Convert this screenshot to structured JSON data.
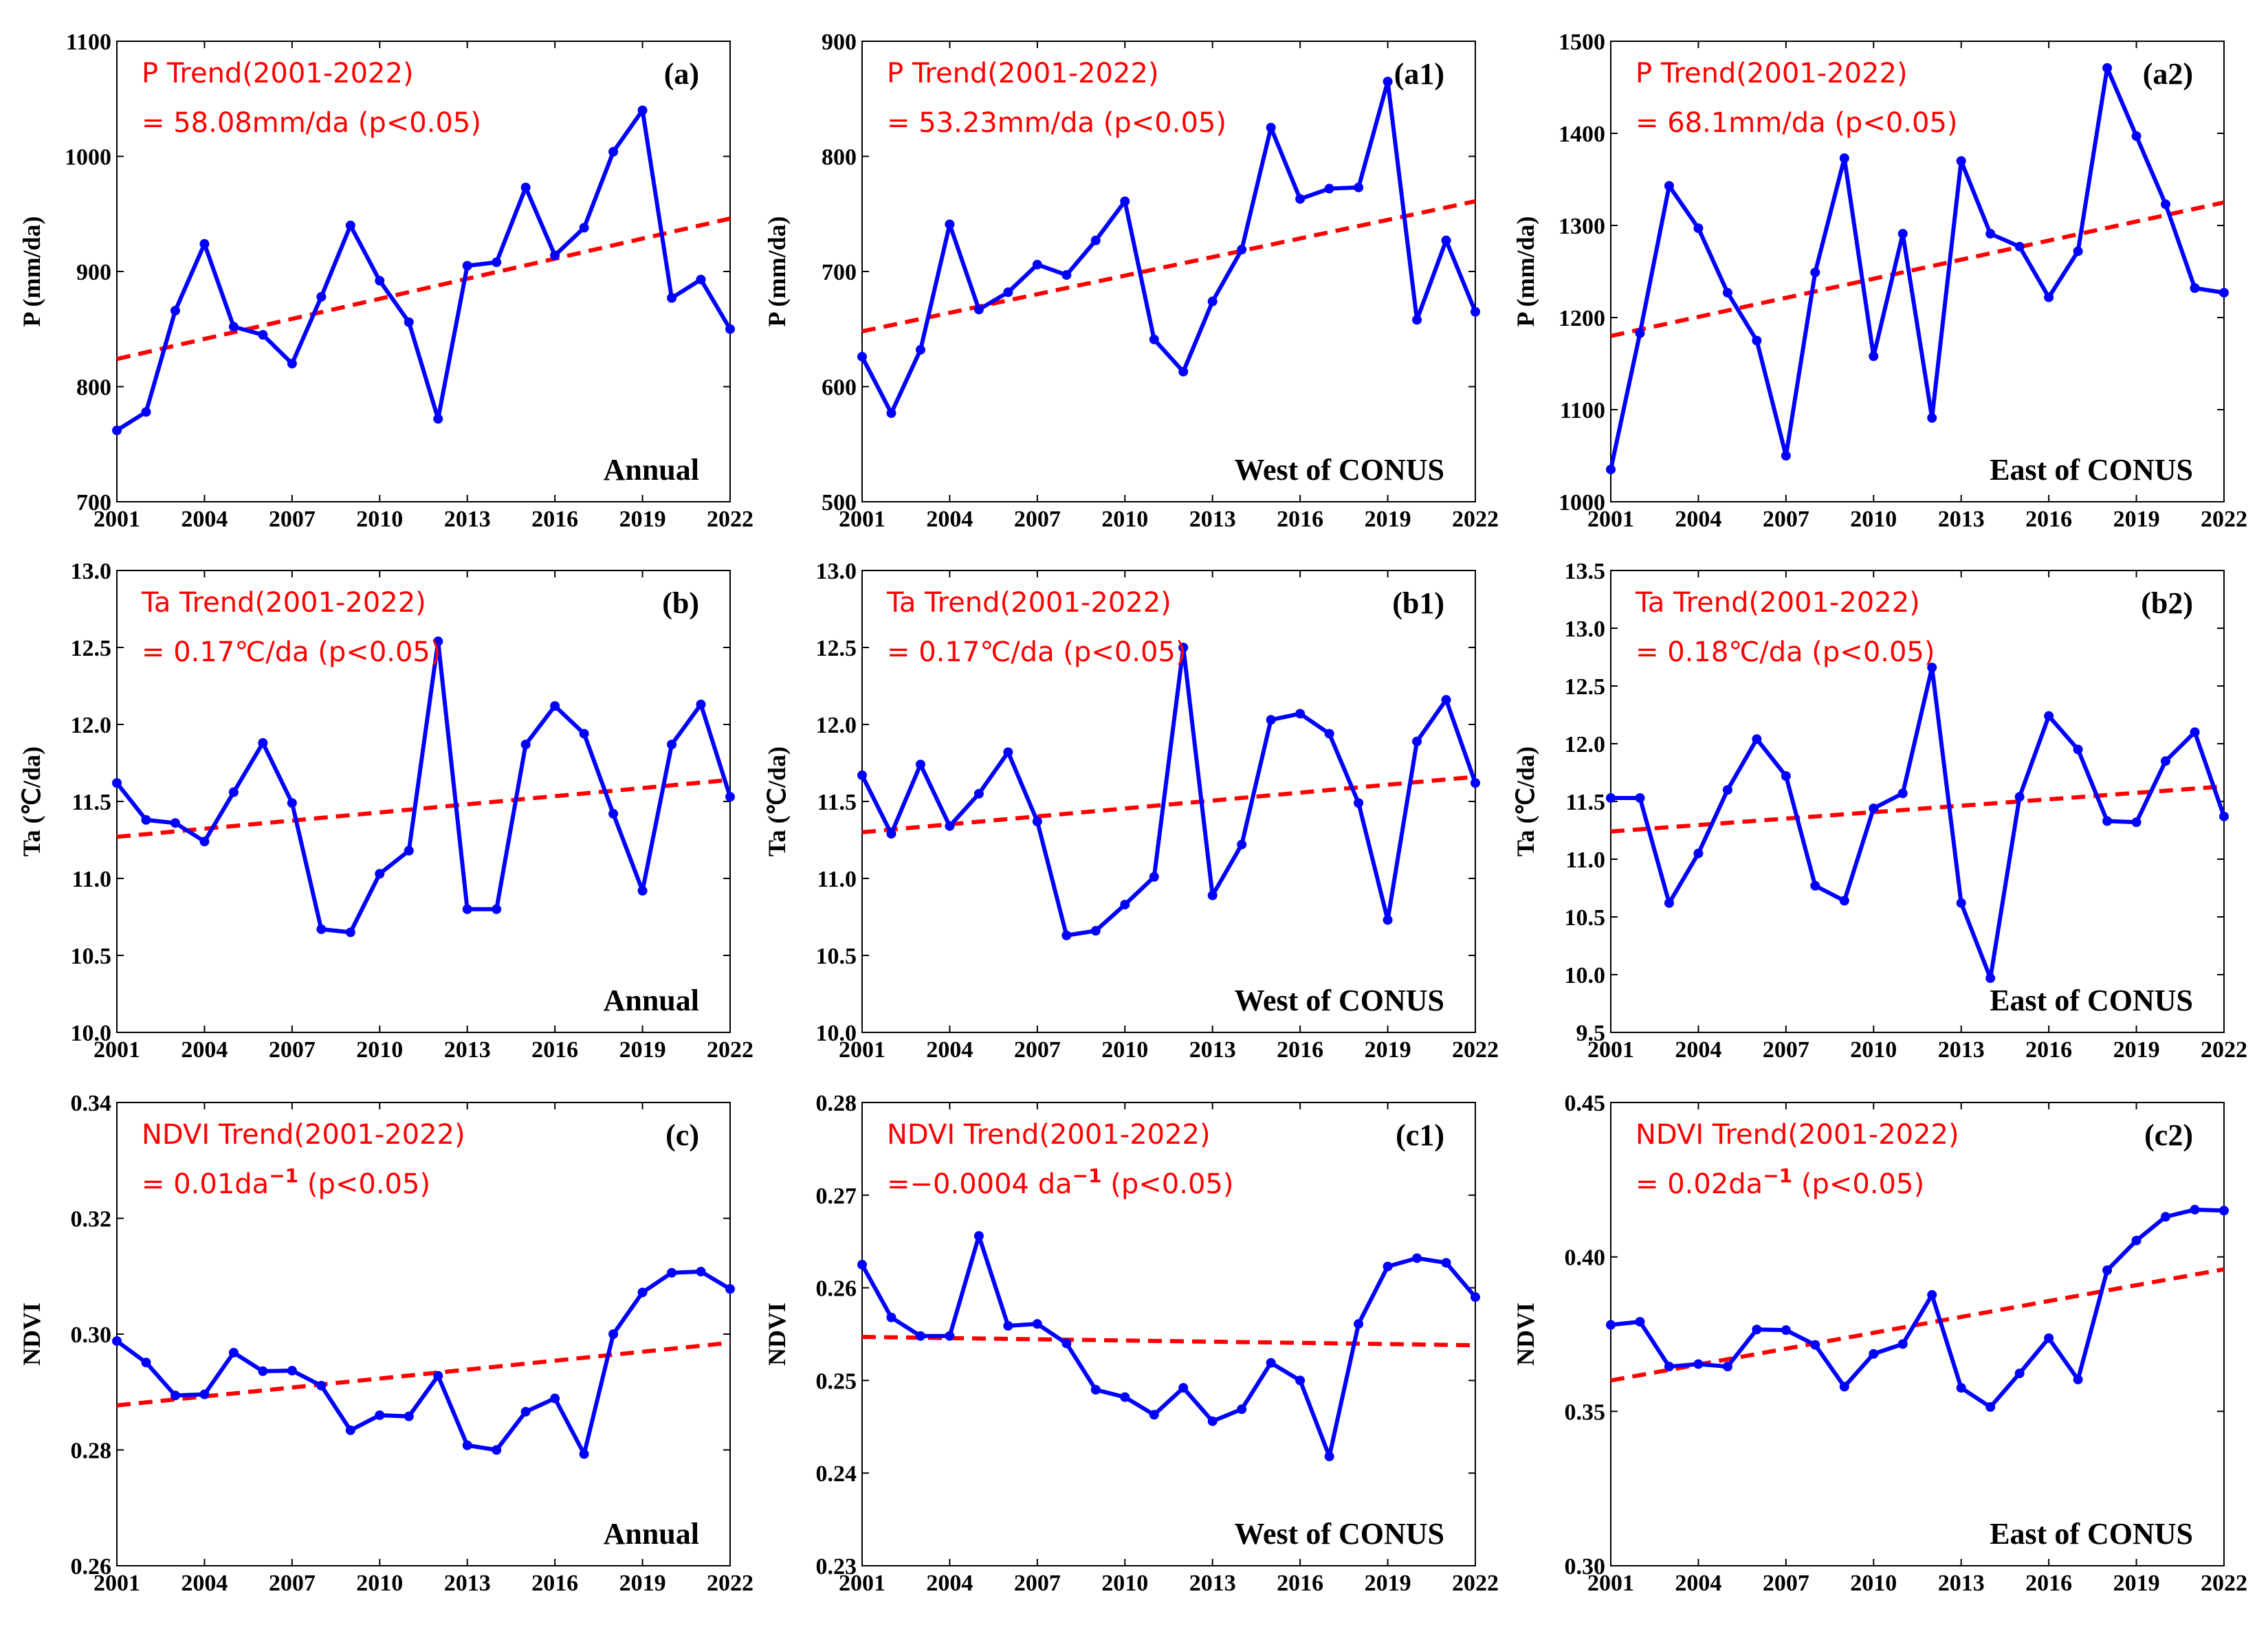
{
  "chart_data": [
    {
      "id": "a",
      "type": "line",
      "panel_label": "(a)",
      "region_label": "Annual",
      "ylabel": "P (mm/da)",
      "ylim": [
        700,
        1100
      ],
      "yticks": [
        700,
        800,
        900,
        1000,
        1100
      ],
      "ytick_labels": [
        "700",
        "800",
        "900",
        "1000",
        "1100"
      ],
      "xticks": [
        2001,
        2004,
        2007,
        2010,
        2013,
        2016,
        2019,
        2022
      ],
      "xtick_labels": [
        "2001",
        "2004",
        "2007",
        "2010",
        "2013",
        "2016",
        "2019",
        "2022"
      ],
      "x": [
        2001,
        2002,
        2003,
        2004,
        2005,
        2006,
        2007,
        2008,
        2009,
        2010,
        2011,
        2012,
        2013,
        2014,
        2015,
        2016,
        2017,
        2018,
        2019,
        2020,
        2021,
        2022
      ],
      "values": [
        762,
        778,
        866,
        924,
        852,
        845,
        820,
        878,
        940,
        892,
        856,
        772,
        905,
        908,
        973,
        914,
        938,
        1004,
        1040,
        877,
        893,
        850
      ],
      "trend": {
        "x": [
          2001,
          2022
        ],
        "y": [
          824,
          946
        ]
      },
      "trend_line1": "P Trend(2001-2022)",
      "trend_line2": "= 58.08mm/da (p<0.05)"
    },
    {
      "id": "a1",
      "type": "line",
      "panel_label": "(a1)",
      "region_label": "West of CONUS",
      "ylabel": "P (mm/da)",
      "ylim": [
        500,
        900
      ],
      "yticks": [
        500,
        600,
        700,
        800,
        900
      ],
      "ytick_labels": [
        "500",
        "600",
        "700",
        "800",
        "900"
      ],
      "xticks": [
        2001,
        2004,
        2007,
        2010,
        2013,
        2016,
        2019,
        2022
      ],
      "xtick_labels": [
        "2001",
        "2004",
        "2007",
        "2010",
        "2013",
        "2016",
        "2019",
        "2022"
      ],
      "x": [
        2001,
        2002,
        2003,
        2004,
        2005,
        2006,
        2007,
        2008,
        2009,
        2010,
        2011,
        2012,
        2013,
        2014,
        2015,
        2016,
        2017,
        2018,
        2019,
        2020,
        2021,
        2022
      ],
      "values": [
        626,
        577,
        632,
        741,
        667,
        682,
        706,
        697,
        727,
        761,
        641,
        613,
        674,
        719,
        825,
        763,
        772,
        773,
        865,
        658,
        727,
        665
      ],
      "trend": {
        "x": [
          2001,
          2022
        ],
        "y": [
          648,
          761
        ]
      },
      "trend_line1": "P Trend(2001-2022)",
      "trend_line2": "= 53.23mm/da (p<0.05)"
    },
    {
      "id": "a2",
      "type": "line",
      "panel_label": "(a2)",
      "region_label": "East of CONUS",
      "ylabel": "P (mm/da)",
      "ylim": [
        1000,
        1500
      ],
      "yticks": [
        1000,
        1100,
        1200,
        1300,
        1400,
        1500
      ],
      "ytick_labels": [
        "1000",
        "1100",
        "1200",
        "1300",
        "1400",
        "1500"
      ],
      "xticks": [
        2001,
        2004,
        2007,
        2010,
        2013,
        2016,
        2019,
        2022
      ],
      "xtick_labels": [
        "2001",
        "2004",
        "2007",
        "2010",
        "2013",
        "2016",
        "2019",
        "2022"
      ],
      "x": [
        2001,
        2002,
        2003,
        2004,
        2005,
        2006,
        2007,
        2008,
        2009,
        2010,
        2011,
        2012,
        2013,
        2014,
        2015,
        2016,
        2017,
        2018,
        2019,
        2020,
        2021,
        2022
      ],
      "values": [
        1035,
        1183,
        1343,
        1297,
        1227,
        1175,
        1050,
        1249,
        1373,
        1158,
        1291,
        1091,
        1370,
        1291,
        1277,
        1222,
        1272,
        1471,
        1397,
        1323,
        1232,
        1227
      ],
      "trend": {
        "x": [
          2001,
          2022
        ],
        "y": [
          1180,
          1325
        ]
      },
      "trend_line1": "P Trend(2001-2022)",
      "trend_line2": "= 68.1mm/da (p<0.05)"
    },
    {
      "id": "b",
      "type": "line",
      "panel_label": "(b)",
      "region_label": "Annual",
      "ylabel": "Ta (℃/da)",
      "ylim": [
        10.0,
        13.0
      ],
      "yticks": [
        10.0,
        10.5,
        11.0,
        11.5,
        12.0,
        12.5,
        13.0
      ],
      "ytick_labels": [
        "10.0",
        "10.5",
        "11.0",
        "11.5",
        "12.0",
        "12.5",
        "13.0"
      ],
      "xticks": [
        2001,
        2004,
        2007,
        2010,
        2013,
        2016,
        2019,
        2022
      ],
      "xtick_labels": [
        "2001",
        "2004",
        "2007",
        "2010",
        "2013",
        "2016",
        "2019",
        "2022"
      ],
      "x": [
        2001,
        2002,
        2003,
        2004,
        2005,
        2006,
        2007,
        2008,
        2009,
        2010,
        2011,
        2012,
        2013,
        2014,
        2015,
        2016,
        2017,
        2018,
        2019,
        2020,
        2021,
        2022
      ],
      "values": [
        11.62,
        11.38,
        11.36,
        11.24,
        11.56,
        11.88,
        11.49,
        10.67,
        10.65,
        11.03,
        11.18,
        12.54,
        10.8,
        10.8,
        11.87,
        12.12,
        11.94,
        11.42,
        10.92,
        11.87,
        12.13,
        11.53
      ],
      "trend": {
        "x": [
          2001,
          2022
        ],
        "y": [
          11.27,
          11.64
        ]
      },
      "trend_line1": "Ta Trend(2001-2022)",
      "trend_line2": "= 0.17℃/da (p<0.05)"
    },
    {
      "id": "b1",
      "type": "line",
      "panel_label": "(b1)",
      "region_label": "West of CONUS",
      "ylabel": "Ta (℃/da)",
      "ylim": [
        10.0,
        13.0
      ],
      "yticks": [
        10.0,
        10.5,
        11.0,
        11.5,
        12.0,
        12.5,
        13.0
      ],
      "ytick_labels": [
        "10.0",
        "10.5",
        "11.0",
        "11.5",
        "12.0",
        "12.5",
        "13.0"
      ],
      "xticks": [
        2001,
        2004,
        2007,
        2010,
        2013,
        2016,
        2019,
        2022
      ],
      "xtick_labels": [
        "2001",
        "2004",
        "2007",
        "2010",
        "2013",
        "2016",
        "2019",
        "2022"
      ],
      "x": [
        2001,
        2002,
        2003,
        2004,
        2005,
        2006,
        2007,
        2008,
        2009,
        2010,
        2011,
        2012,
        2013,
        2014,
        2015,
        2016,
        2017,
        2018,
        2019,
        2020,
        2021,
        2022
      ],
      "values": [
        11.67,
        11.29,
        11.74,
        11.34,
        11.55,
        11.82,
        11.37,
        10.63,
        10.66,
        10.83,
        11.01,
        12.5,
        10.89,
        11.22,
        12.03,
        12.07,
        11.94,
        11.49,
        10.73,
        11.89,
        12.16,
        11.62
      ],
      "trend": {
        "x": [
          2001,
          2022
        ],
        "y": [
          11.3,
          11.66
        ]
      },
      "trend_line1": "Ta Trend(2001-2022)",
      "trend_line2": "= 0.17℃/da (p<0.05)"
    },
    {
      "id": "b2",
      "type": "line",
      "panel_label": "(b2)",
      "region_label": "East of CONUS",
      "ylabel": "Ta (℃/da)",
      "ylim": [
        9.5,
        13.5
      ],
      "yticks": [
        9.5,
        10.0,
        10.5,
        11.0,
        11.5,
        12.0,
        12.5,
        13.0,
        13.5
      ],
      "ytick_labels": [
        "9.5",
        "10.0",
        "10.5",
        "11.0",
        "11.5",
        "12.0",
        "12.5",
        "13.0",
        "13.5"
      ],
      "xticks": [
        2001,
        2004,
        2007,
        2010,
        2013,
        2016,
        2019,
        2022
      ],
      "xtick_labels": [
        "2001",
        "2004",
        "2007",
        "2010",
        "2013",
        "2016",
        "2019",
        "2022"
      ],
      "x": [
        2001,
        2002,
        2003,
        2004,
        2005,
        2006,
        2007,
        2008,
        2009,
        2010,
        2011,
        2012,
        2013,
        2014,
        2015,
        2016,
        2017,
        2018,
        2019,
        2020,
        2021,
        2022
      ],
      "values": [
        11.53,
        11.53,
        10.62,
        11.05,
        11.6,
        12.04,
        11.72,
        10.77,
        10.64,
        11.44,
        11.57,
        12.66,
        10.62,
        9.97,
        11.54,
        12.24,
        11.95,
        11.33,
        11.32,
        11.85,
        12.1,
        11.37
      ],
      "trend": {
        "x": [
          2001,
          2022
        ],
        "y": [
          11.24,
          11.63
        ]
      },
      "trend_line1": "Ta Trend(2001-2022)",
      "trend_line2": "= 0.18℃/da (p<0.05)"
    },
    {
      "id": "c",
      "type": "line",
      "panel_label": "(c)",
      "region_label": "Annual",
      "ylabel": "NDVI",
      "ylim": [
        0.26,
        0.34
      ],
      "yticks": [
        0.26,
        0.28,
        0.3,
        0.32,
        0.34
      ],
      "ytick_labels": [
        "0.26",
        "0.28",
        "0.30",
        "0.32",
        "0.34"
      ],
      "xticks": [
        2001,
        2004,
        2007,
        2010,
        2013,
        2016,
        2019,
        2022
      ],
      "xtick_labels": [
        "2001",
        "2004",
        "2007",
        "2010",
        "2013",
        "2016",
        "2019",
        "2022"
      ],
      "x": [
        2001,
        2002,
        2003,
        2004,
        2005,
        2006,
        2007,
        2008,
        2009,
        2010,
        2011,
        2012,
        2013,
        2014,
        2015,
        2016,
        2017,
        2018,
        2019,
        2020,
        2021,
        2022
      ],
      "values": [
        0.2988,
        0.2951,
        0.2894,
        0.2896,
        0.2968,
        0.2936,
        0.2937,
        0.2911,
        0.2834,
        0.286,
        0.2858,
        0.2928,
        0.2808,
        0.28,
        0.2866,
        0.2889,
        0.2793,
        0.3,
        0.3072,
        0.3106,
        0.3108,
        0.3078
      ],
      "trend": {
        "x": [
          2001,
          2022
        ],
        "y": [
          0.2877,
          0.2985
        ]
      },
      "trend_line1": "NDVI Trend(2001-2022)",
      "trend_line2_main": "= 0.01da",
      "trend_line2_sup": "−1",
      "trend_line2_end": " (p<0.05)"
    },
    {
      "id": "c1",
      "type": "line",
      "panel_label": "(c1)",
      "region_label": "West of CONUS",
      "ylabel": "NDVI",
      "ylim": [
        0.23,
        0.28
      ],
      "yticks": [
        0.23,
        0.24,
        0.25,
        0.26,
        0.27,
        0.28
      ],
      "ytick_labels": [
        "0.23",
        "0.24",
        "0.25",
        "0.26",
        "0.27",
        "0.28"
      ],
      "xticks": [
        2001,
        2004,
        2007,
        2010,
        2013,
        2016,
        2019,
        2022
      ],
      "xtick_labels": [
        "2001",
        "2004",
        "2007",
        "2010",
        "2013",
        "2016",
        "2019",
        "2022"
      ],
      "x": [
        2001,
        2002,
        2003,
        2004,
        2005,
        2006,
        2007,
        2008,
        2009,
        2010,
        2011,
        2012,
        2013,
        2014,
        2015,
        2016,
        2017,
        2018,
        2019,
        2020,
        2021,
        2022
      ],
      "values": [
        0.2625,
        0.2568,
        0.2548,
        0.2548,
        0.2656,
        0.2559,
        0.2561,
        0.254,
        0.249,
        0.2482,
        0.2463,
        0.2492,
        0.2456,
        0.2469,
        0.2519,
        0.25,
        0.2418,
        0.2561,
        0.2623,
        0.2632,
        0.2627,
        0.259
      ],
      "trend": {
        "x": [
          2001,
          2022
        ],
        "y": [
          0.2547,
          0.2538
        ]
      },
      "trend_line1": "NDVI Trend(2001-2022)",
      "trend_line2_main": "=−0.0004 da",
      "trend_line2_sup": "−1",
      "trend_line2_end": " (p<0.05)"
    },
    {
      "id": "c2",
      "type": "line",
      "panel_label": "(c2)",
      "region_label": "East of CONUS",
      "ylabel": "NDVI",
      "ylim": [
        0.3,
        0.45
      ],
      "yticks": [
        0.3,
        0.35,
        0.4,
        0.45
      ],
      "ytick_labels": [
        "0.30",
        "0.35",
        "0.40",
        "0.45"
      ],
      "xticks": [
        2001,
        2004,
        2007,
        2010,
        2013,
        2016,
        2019,
        2022
      ],
      "xtick_labels": [
        "2001",
        "2004",
        "2007",
        "2010",
        "2013",
        "2016",
        "2019",
        "2022"
      ],
      "x": [
        2001,
        2002,
        2003,
        2004,
        2005,
        2006,
        2007,
        2008,
        2009,
        2010,
        2011,
        2012,
        2013,
        2014,
        2015,
        2016,
        2017,
        2018,
        2019,
        2020,
        2021,
        2022
      ],
      "values": [
        0.378,
        0.379,
        0.3645,
        0.3653,
        0.3645,
        0.3765,
        0.3763,
        0.3715,
        0.358,
        0.3686,
        0.3718,
        0.3877,
        0.3576,
        0.3514,
        0.3623,
        0.3737,
        0.3603,
        0.3957,
        0.4053,
        0.413,
        0.4153,
        0.415
      ],
      "trend": {
        "x": [
          2001,
          2022
        ],
        "y": [
          0.36,
          0.396
        ]
      },
      "trend_line1": "NDVI Trend(2001-2022)",
      "trend_line2_main": "= 0.02da",
      "trend_line2_sup": "−1",
      "trend_line2_end": " (p<0.05)"
    }
  ]
}
